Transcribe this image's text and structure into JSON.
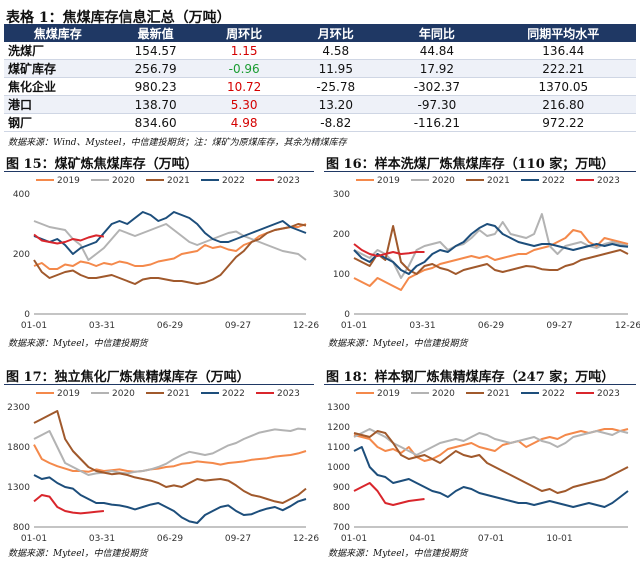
{
  "table": {
    "title": "表格 1：焦煤库存信息汇总（万吨）",
    "headers": [
      "焦煤库存",
      "最新值",
      "周环比",
      "月环比",
      "年同比",
      "同期平均水平"
    ],
    "rows": [
      {
        "name": "洗煤厂",
        "latest": "154.57",
        "wow": "1.15",
        "wow_color": "red",
        "mom": "4.58",
        "yoy": "44.84",
        "avg": "136.44"
      },
      {
        "name": "煤矿库存",
        "latest": "256.79",
        "wow": "-0.96",
        "wow_color": "green",
        "mom": "11.95",
        "yoy": "17.92",
        "avg": "222.21"
      },
      {
        "name": "焦化企业",
        "latest": "980.23",
        "wow": "10.72",
        "wow_color": "red",
        "mom": "-25.78",
        "yoy": "-302.37",
        "avg": "1370.05"
      },
      {
        "name": "港口",
        "latest": "138.70",
        "wow": "5.30",
        "wow_color": "red",
        "mom": "13.20",
        "yoy": "-97.30",
        "avg": "216.80"
      },
      {
        "name": "钢厂",
        "latest": "834.60",
        "wow": "4.98",
        "wow_color": "red",
        "mom": "-8.82",
        "yoy": "-116.21",
        "avg": "972.22"
      }
    ],
    "source": "数据来源：Wind、Mysteel，中信建投期货；注：煤矿为原煤库存，其余为精煤库存"
  },
  "source_bottom": "数据来源：Myteel，中信建投期货",
  "colors": {
    "2019": "#f4894b",
    "2020": "#b3b3b3",
    "2021": "#a0592c",
    "2022": "#1d4e7b",
    "2023": "#d9262c",
    "header": "#1f3864"
  },
  "chart_data": [
    {
      "type": "line",
      "title": "图 15：煤矿炼焦煤库存（万吨）",
      "source": "数据来源：Myteel，中信建投期货",
      "x_ticks": [
        "01-01",
        "03-31",
        "06-29",
        "09-27",
        "12-26"
      ],
      "ylim": [
        0,
        400
      ],
      "y_ticks": [
        0,
        200,
        400
      ],
      "legend_position": "top",
      "series": [
        {
          "name": "2019",
          "values": [
            160,
            170,
            150,
            150,
            165,
            160,
            175,
            170,
            160,
            170,
            165,
            175,
            170,
            160,
            160,
            165,
            175,
            180,
            185,
            200,
            205,
            210,
            230,
            220,
            225,
            215,
            210,
            230,
            240,
            260,
            270,
            280,
            285,
            290,
            290,
            300
          ]
        },
        {
          "name": "2020",
          "values": [
            310,
            300,
            290,
            285,
            280,
            250,
            230,
            180,
            200,
            220,
            250,
            280,
            270,
            260,
            270,
            280,
            290,
            300,
            280,
            260,
            240,
            230,
            240,
            250,
            260,
            270,
            275,
            260,
            250,
            240,
            230,
            220,
            210,
            205,
            200,
            180
          ]
        },
        {
          "name": "2021",
          "values": [
            180,
            140,
            120,
            130,
            140,
            145,
            130,
            120,
            120,
            125,
            130,
            120,
            110,
            100,
            115,
            120,
            120,
            115,
            110,
            110,
            105,
            100,
            105,
            115,
            130,
            160,
            190,
            210,
            240,
            250,
            270,
            280,
            285,
            290,
            300,
            295
          ]
        },
        {
          "name": "2022",
          "values": [
            260,
            250,
            240,
            250,
            230,
            200,
            220,
            230,
            240,
            270,
            300,
            310,
            300,
            320,
            340,
            330,
            310,
            320,
            340,
            330,
            320,
            300,
            270,
            250,
            240,
            240,
            250,
            260,
            270,
            280,
            290,
            300,
            310,
            290,
            280,
            270
          ]
        },
        {
          "name": "2023",
          "values": [
            265,
            245,
            240,
            235,
            240,
            250,
            245,
            255,
            262,
            258
          ]
        }
      ]
    },
    {
      "type": "line",
      "title": "图 16：样本洗煤厂炼焦煤库存（110 家；万吨）",
      "source": "数据来源：Myteel，中信建投期货",
      "x_ticks": [
        "01-01",
        "03-31",
        "06-29",
        "09-27",
        "12-26"
      ],
      "ylim": [
        0,
        300
      ],
      "y_ticks": [
        0,
        100,
        200,
        300
      ],
      "legend_position": "top",
      "series": [
        {
          "name": "2019",
          "values": [
            90,
            80,
            70,
            90,
            80,
            70,
            60,
            90,
            100,
            110,
            115,
            125,
            130,
            135,
            140,
            145,
            140,
            145,
            135,
            140,
            145,
            150,
            150,
            160,
            165,
            170,
            180,
            190,
            210,
            205,
            180,
            170,
            190,
            185,
            180,
            175
          ]
        },
        {
          "name": "2020",
          "values": [
            160,
            150,
            140,
            160,
            150,
            130,
            90,
            120,
            160,
            170,
            175,
            180,
            160,
            170,
            175,
            190,
            210,
            195,
            200,
            230,
            200,
            195,
            190,
            200,
            250,
            170,
            150,
            170,
            175,
            180,
            170,
            165,
            175,
            180,
            175,
            170
          ]
        },
        {
          "name": "2021",
          "values": [
            140,
            130,
            120,
            150,
            135,
            220,
            130,
            110,
            100,
            120,
            125,
            115,
            110,
            100,
            110,
            115,
            120,
            125,
            110,
            105,
            110,
            115,
            120,
            118,
            112,
            110,
            110,
            120,
            125,
            135,
            140,
            145,
            150,
            155,
            160,
            150
          ]
        },
        {
          "name": "2022",
          "values": [
            160,
            140,
            130,
            150,
            140,
            130,
            110,
            100,
            120,
            130,
            150,
            160,
            155,
            170,
            180,
            200,
            215,
            225,
            220,
            200,
            190,
            180,
            175,
            170,
            175,
            175,
            170,
            165,
            160,
            165,
            170,
            175,
            170,
            175,
            170,
            168
          ]
        },
        {
          "name": "2023",
          "values": [
            175,
            160,
            150,
            145,
            150,
            155,
            150,
            152,
            155,
            155
          ]
        }
      ]
    },
    {
      "type": "line",
      "title": "图 17：独立焦化厂炼焦精煤库存（万吨）",
      "source": "数据来源：Myteel，中信建投期货",
      "x_ticks": [
        "01-01",
        "03-31",
        "06-29",
        "09-27",
        "12-26"
      ],
      "ylim": [
        800,
        2300
      ],
      "y_ticks": [
        800,
        1300,
        1800,
        2300
      ],
      "legend_position": "top",
      "series": [
        {
          "name": "2019",
          "values": [
            1830,
            1650,
            1600,
            1560,
            1530,
            1500,
            1500,
            1490,
            1520,
            1500,
            1510,
            1520,
            1500,
            1490,
            1500,
            1520,
            1530,
            1550,
            1560,
            1590,
            1600,
            1620,
            1610,
            1600,
            1580,
            1600,
            1610,
            1620,
            1640,
            1650,
            1660,
            1680,
            1690,
            1700,
            1720,
            1750
          ]
        },
        {
          "name": "2020",
          "values": [
            1900,
            1950,
            2000,
            1800,
            1600,
            1550,
            1500,
            1450,
            1470,
            1480,
            1500,
            1480,
            1470,
            1490,
            1500,
            1520,
            1550,
            1590,
            1650,
            1700,
            1740,
            1720,
            1700,
            1720,
            1770,
            1820,
            1850,
            1900,
            1940,
            1980,
            2000,
            2020,
            2010,
            2000,
            2030,
            2020
          ]
        },
        {
          "name": "2021",
          "values": [
            2100,
            2150,
            2200,
            2250,
            1900,
            1750,
            1650,
            1550,
            1500,
            1480,
            1460,
            1470,
            1450,
            1420,
            1400,
            1380,
            1350,
            1300,
            1320,
            1300,
            1350,
            1400,
            1380,
            1390,
            1400,
            1380,
            1320,
            1250,
            1200,
            1180,
            1150,
            1120,
            1100,
            1150,
            1200,
            1280
          ]
        },
        {
          "name": "2022",
          "values": [
            1450,
            1400,
            1420,
            1350,
            1300,
            1280,
            1200,
            1150,
            1100,
            1100,
            1080,
            1070,
            1050,
            1020,
            1050,
            1080,
            1100,
            1050,
            1000,
            920,
            870,
            850,
            950,
            1000,
            1050,
            1070,
            1000,
            950,
            960,
            1000,
            1030,
            1050,
            1010,
            1060,
            1120,
            1150
          ]
        },
        {
          "name": "2023",
          "values": [
            1120,
            1200,
            1180,
            1050,
            1000,
            980,
            970,
            980,
            990,
            1000
          ]
        }
      ]
    },
    {
      "type": "line",
      "title": "图 18：样本钢厂炼焦精煤库存（247 家；万吨）",
      "source": "数据来源：Myteel，中信建投期货",
      "x_ticks": [
        "01-01",
        "04-01",
        "07-01",
        "10-01"
      ],
      "ylim": [
        700,
        1300
      ],
      "y_ticks": [
        700,
        800,
        900,
        1000,
        1100,
        1200,
        1300
      ],
      "legend_position": "top",
      "series": [
        {
          "name": "2019",
          "values": [
            1160,
            1150,
            1140,
            1100,
            1080,
            1090,
            1070,
            1100,
            1050,
            1030,
            1040,
            1060,
            1090,
            1100,
            1110,
            1120,
            1100,
            1090,
            1080,
            1110,
            1120,
            1130,
            1100,
            1120,
            1140,
            1150,
            1140,
            1160,
            1170,
            1180,
            1170,
            1180,
            1190,
            1190,
            1180,
            1190
          ]
        },
        {
          "name": "2020",
          "values": [
            1150,
            1170,
            1190,
            1170,
            1150,
            1120,
            1100,
            1080,
            1060,
            1080,
            1100,
            1120,
            1130,
            1140,
            1130,
            1150,
            1170,
            1160,
            1140,
            1130,
            1120,
            1130,
            1140,
            1150,
            1130,
            1120,
            1100,
            1120,
            1150,
            1160,
            1170,
            1180,
            1170,
            1160,
            1180,
            1170
          ]
        },
        {
          "name": "2021",
          "values": [
            1170,
            1160,
            1150,
            1180,
            1170,
            1120,
            1060,
            1040,
            1050,
            1060,
            1040,
            1020,
            1050,
            1080,
            1060,
            1050,
            1060,
            1020,
            1000,
            980,
            960,
            940,
            920,
            900,
            880,
            890,
            870,
            880,
            900,
            910,
            920,
            930,
            940,
            960,
            980,
            1000
          ]
        },
        {
          "name": "2022",
          "values": [
            1080,
            1100,
            1000,
            960,
            950,
            920,
            930,
            940,
            920,
            900,
            880,
            870,
            850,
            880,
            900,
            890,
            870,
            860,
            850,
            840,
            830,
            820,
            820,
            810,
            820,
            830,
            820,
            810,
            800,
            810,
            820,
            810,
            800,
            820,
            850,
            880
          ]
        },
        {
          "name": "2023",
          "values": [
            880,
            900,
            920,
            880,
            820,
            810,
            820,
            830,
            835,
            840
          ]
        }
      ]
    }
  ]
}
